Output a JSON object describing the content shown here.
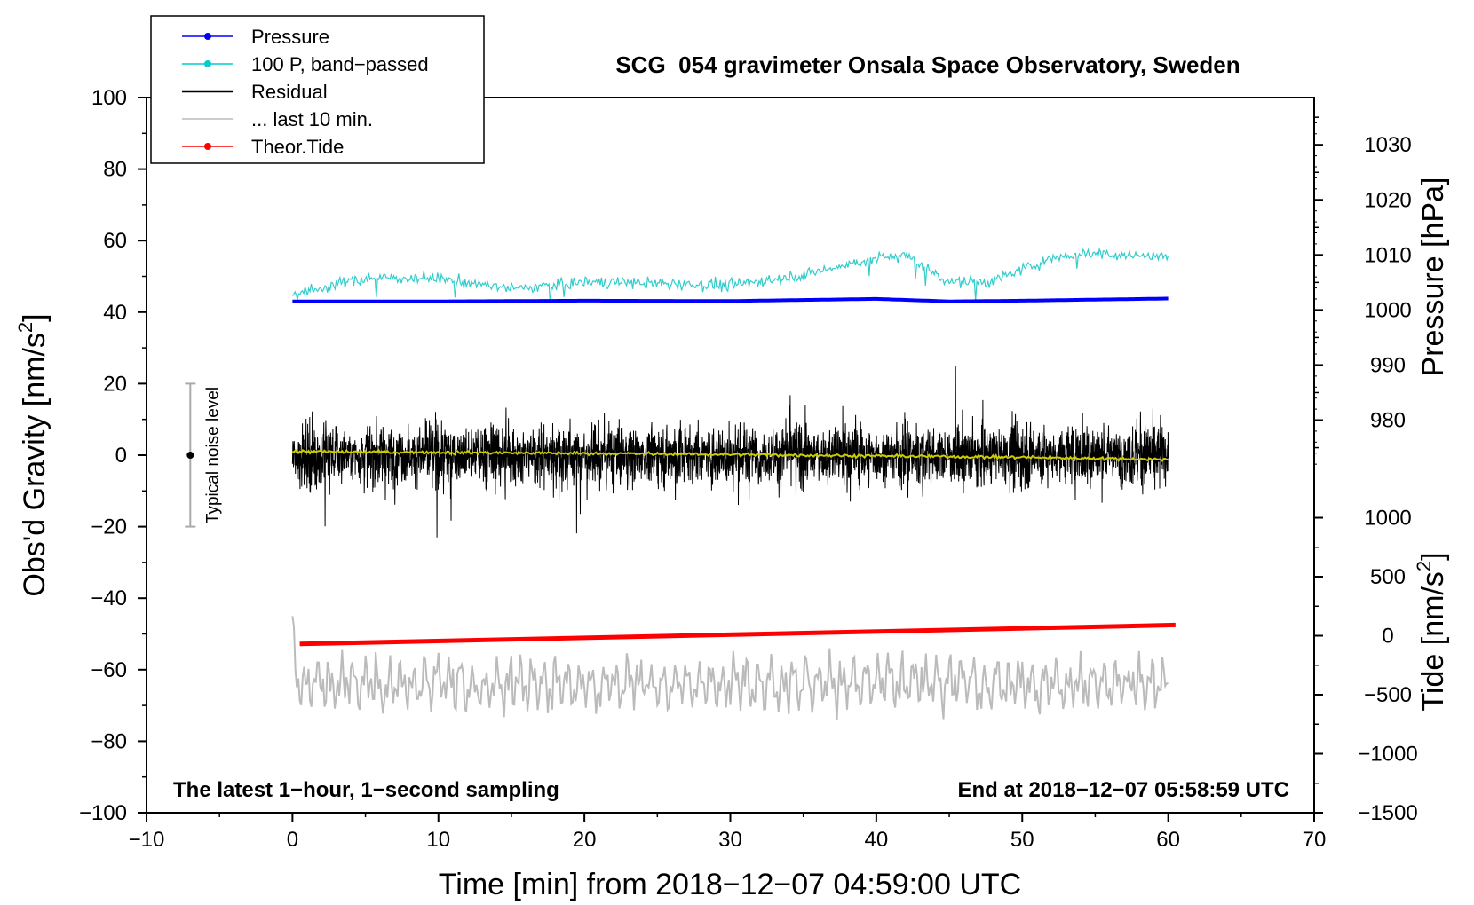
{
  "chart_data": {
    "type": "line",
    "title": "SCG_054 gravimeter Onsala Space Observatory, Sweden",
    "xlabel": "Time [min] from 2018−12−07 04:59:00 UTC",
    "ylabel_left": "Obs'd Gravity [nm/s",
    "ylabel_left_sup": "2",
    "ylabel_left_close": "]",
    "ylabel_right_pressure": "Pressure [hPa]",
    "ylabel_right_tide": "Tide [nm/s",
    "ylabel_right_tide_sup": "2",
    "ylabel_right_tide_close": "]",
    "xlim": [
      -10,
      70
    ],
    "xticks": [
      -10,
      0,
      10,
      20,
      30,
      40,
      50,
      60,
      70
    ],
    "xtick_labels": [
      "−10",
      "0",
      "10",
      "20",
      "30",
      "40",
      "50",
      "60",
      "70"
    ],
    "ylim": [
      -100,
      100
    ],
    "yticks": [
      -100,
      -80,
      -60,
      -40,
      -20,
      0,
      20,
      40,
      60,
      80,
      100
    ],
    "ytick_labels": [
      "−100",
      "−80",
      "−60",
      "−40",
      "−20",
      "0",
      "20",
      "40",
      "60",
      "80",
      "100"
    ],
    "pressure_axis": {
      "ticks": [
        980,
        990,
        1000,
        1010,
        1020,
        1030
      ],
      "tick_labels": [
        "980",
        "990",
        "1000",
        "1010",
        "1020",
        "1030"
      ],
      "gravity_at_1000": 40.6,
      "gravity_per_hpa": 1.54
    },
    "tide_axis": {
      "ticks": [
        -1500,
        -1000,
        -500,
        0,
        500,
        1000
      ],
      "tick_labels": [
        "−1500",
        "−1000",
        "−500",
        "0",
        "500",
        "1000"
      ],
      "gravity_at_0": -50.5,
      "gravity_per_unit": 0.033
    },
    "noise_bar": {
      "label": "Typical noise level",
      "x": -7,
      "center": 0,
      "low": -20,
      "high": 20
    },
    "annotations": {
      "bottom_left": "The latest 1−hour, 1−second sampling",
      "bottom_right": "End at 2018−12−07 05:58:59 UTC"
    },
    "legend": [
      {
        "name": "Pressure",
        "color": "#0000ff",
        "marker": true
      },
      {
        "name": "100 P, band−passed",
        "color": "#00cccc",
        "marker": true
      },
      {
        "name": "Residual",
        "color": "#000000",
        "marker": false
      },
      {
        "name": "... last 10 min.",
        "color": "#bbbbbb",
        "marker": false
      },
      {
        "name": "Theor.Tide",
        "color": "#ff0000",
        "marker": true
      }
    ],
    "series": [
      {
        "name": "Pressure",
        "color": "#0000ff",
        "x": [
          0,
          10,
          20,
          30,
          40,
          45,
          50,
          60
        ],
        "values": [
          43.0,
          43.0,
          43.2,
          43.1,
          43.7,
          43.0,
          43.2,
          43.8
        ]
      },
      {
        "name": "100 P, band−passed",
        "color": "#33cccc",
        "x": [
          0,
          5,
          10,
          15,
          20,
          25,
          30,
          35,
          40,
          42,
          45,
          48,
          50,
          52,
          54,
          57,
          60
        ],
        "values": [
          45.0,
          49.5,
          49.5,
          46.5,
          48.5,
          48.0,
          47.5,
          50.5,
          55.0,
          56.0,
          48.5,
          48.5,
          52.0,
          55.0,
          56.5,
          56.0,
          55.5
        ],
        "noise_amplitude": 1.6
      },
      {
        "name": "Residual",
        "color": "#000000",
        "x_range": [
          0,
          60
        ],
        "mean": 0,
        "std": 5.5,
        "peak_min": -23,
        "peak_max": 25
      },
      {
        "name": "Residual (smoothed)",
        "color": "#cccc00",
        "x": [
          0,
          10,
          20,
          30,
          40,
          50,
          60
        ],
        "values": [
          1.0,
          0.8,
          0.5,
          0.2,
          -0.2,
          -0.6,
          -1.2
        ]
      },
      {
        "name": "... last 10 min.",
        "color": "#bbbbbb",
        "x_range": [
          0,
          60
        ],
        "center": -64,
        "amplitude_min": -84,
        "amplitude_max": -45
      },
      {
        "name": "Theor.Tide",
        "color": "#ff0000",
        "x": [
          0.5,
          60.5
        ],
        "values": [
          -52.8,
          -47.5
        ]
      }
    ]
  }
}
